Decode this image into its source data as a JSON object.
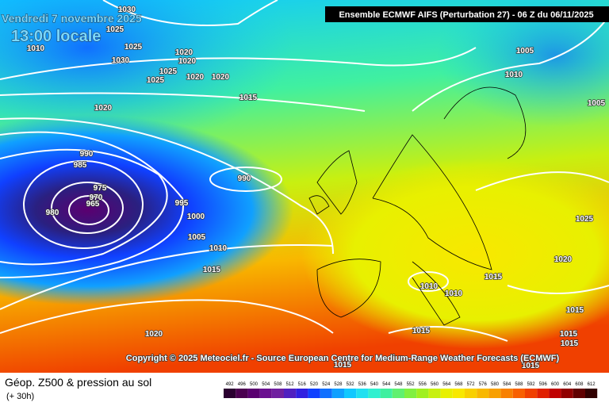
{
  "header": {
    "date": "Vendredi 7 novembre 2025",
    "time": "13:00 locale",
    "model": "Ensemble ECMWF AIFS  (Perturbation 27)  -  06 Z du 06/11/2025"
  },
  "copyright": "Copyright © 2025 Meteociel.fr - Source European Centre for Medium-Range Weather Forecasts (ECMWF)",
  "footer": {
    "title": "Géop. Z500 & pression au sol",
    "lead": "(+ 30h)"
  },
  "isobars": [
    1030,
    1025,
    1010,
    1025,
    1030,
    1020,
    1020,
    1025,
    1020,
    1020,
    1025,
    1020,
    1015,
    990,
    985,
    975,
    970,
    965,
    980,
    995,
    1000,
    1005,
    1010,
    1015,
    990,
    1020,
    1005,
    1010,
    1005,
    1025,
    1020,
    1015,
    1010,
    1010,
    1015,
    1015,
    1015,
    1015,
    1015,
    1015
  ],
  "scale": [
    {
      "label": "492",
      "color": "#2a0030"
    },
    {
      "label": "496",
      "color": "#4b0050"
    },
    {
      "label": "500",
      "color": "#5a0070"
    },
    {
      "label": "504",
      "color": "#6a1090"
    },
    {
      "label": "508",
      "color": "#7020a0"
    },
    {
      "label": "512",
      "color": "#5020c0"
    },
    {
      "label": "516",
      "color": "#3020e0"
    },
    {
      "label": "520",
      "color": "#1040ff"
    },
    {
      "label": "524",
      "color": "#1070ff"
    },
    {
      "label": "528",
      "color": "#10a0ff"
    },
    {
      "label": "532",
      "color": "#10c8ff"
    },
    {
      "label": "536",
      "color": "#20e0f0"
    },
    {
      "label": "540",
      "color": "#30f0d0"
    },
    {
      "label": "544",
      "color": "#40f0a0"
    },
    {
      "label": "548",
      "color": "#60f070"
    },
    {
      "label": "552",
      "color": "#80f040"
    },
    {
      "label": "556",
      "color": "#a0f020"
    },
    {
      "label": "560",
      "color": "#c8f010"
    },
    {
      "label": "564",
      "color": "#e8f000"
    },
    {
      "label": "568",
      "color": "#f8e800"
    },
    {
      "label": "572",
      "color": "#f8d000"
    },
    {
      "label": "576",
      "color": "#f8b800"
    },
    {
      "label": "580",
      "color": "#f8a000"
    },
    {
      "label": "584",
      "color": "#f88000"
    },
    {
      "label": "588",
      "color": "#f86000"
    },
    {
      "label": "592",
      "color": "#f04000"
    },
    {
      "label": "596",
      "color": "#e02000"
    },
    {
      "label": "600",
      "color": "#c00000"
    },
    {
      "label": "604",
      "color": "#900000"
    },
    {
      "label": "608",
      "color": "#600000"
    },
    {
      "label": "612",
      "color": "#300000"
    }
  ]
}
